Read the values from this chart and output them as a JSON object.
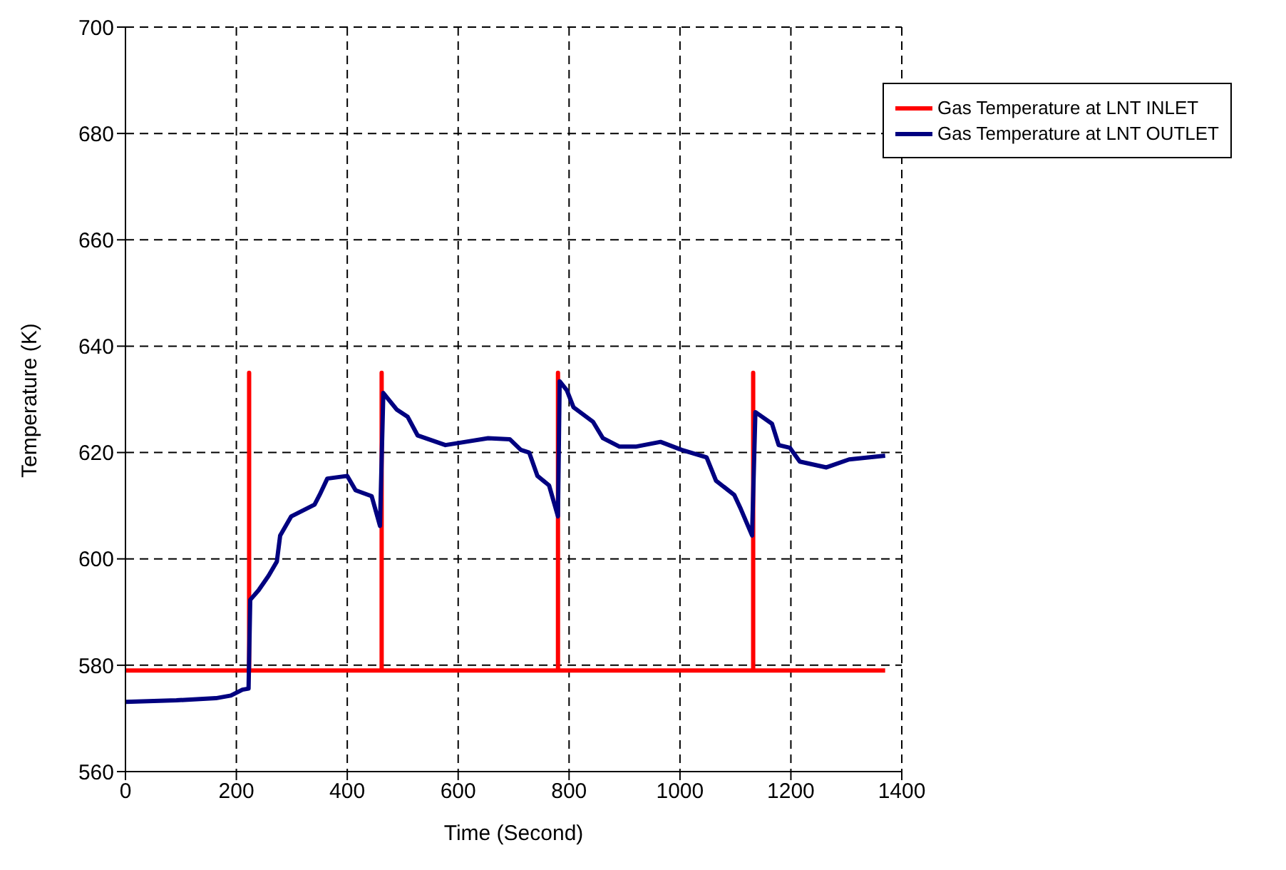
{
  "chart_data": {
    "type": "line",
    "xlabel": "Time (Second)",
    "ylabel": "Temperature (K)",
    "xlim": [
      0,
      1400
    ],
    "xticks": [
      0,
      200,
      400,
      600,
      800,
      1000,
      1200,
      1400
    ],
    "ylim": [
      560,
      700
    ],
    "yticks": [
      560,
      580,
      600,
      620,
      640,
      660,
      680,
      700
    ],
    "grid": true,
    "legend": "top right",
    "marker": "none",
    "line_style": "solid",
    "series": [
      {
        "name": "Gas Temperature at LNT INLET",
        "color": "#ff0000",
        "x": [
          0,
          223,
          223,
          223,
          462,
          462,
          462,
          780,
          780,
          780,
          1132,
          1132,
          1132,
          1370
        ],
        "values": [
          579,
          579,
          635,
          579,
          579,
          635,
          579,
          579,
          635,
          579,
          579,
          635,
          579,
          579
        ]
      },
      {
        "name": "Gas Temperature at LNT OUTLET",
        "color": "#000080",
        "x": [
          0,
          92,
          163,
          190,
          211,
          222,
          225,
          240,
          258,
          273,
          279,
          299,
          341,
          350,
          364,
          400,
          415,
          444,
          459,
          465,
          489,
          509,
          527,
          577,
          613,
          654,
          693,
          713,
          728,
          743,
          764,
          780,
          783,
          796,
          808,
          843,
          861,
          891,
          920,
          965,
          1003,
          1048,
          1065,
          1098,
          1110,
          1130,
          1136,
          1166,
          1178,
          1198,
          1216,
          1264,
          1305,
          1370
        ],
        "values": [
          573.1,
          573.4,
          573.8,
          574.3,
          575.4,
          575.6,
          592.3,
          594.1,
          596.8,
          599.5,
          604.4,
          608,
          610.2,
          612,
          615.1,
          615.6,
          612.9,
          611.8,
          606.2,
          631.2,
          628.1,
          626.7,
          623.2,
          621.4,
          622,
          622.7,
          622.5,
          620.5,
          620,
          615.6,
          613.8,
          608,
          633.4,
          631.7,
          628.5,
          625.8,
          622.7,
          621.1,
          621.1,
          622,
          620.5,
          619.1,
          614.7,
          612,
          609.3,
          604.4,
          627.6,
          625.4,
          621.4,
          620.9,
          618.3,
          617.2,
          618.7,
          619.4
        ]
      }
    ]
  }
}
